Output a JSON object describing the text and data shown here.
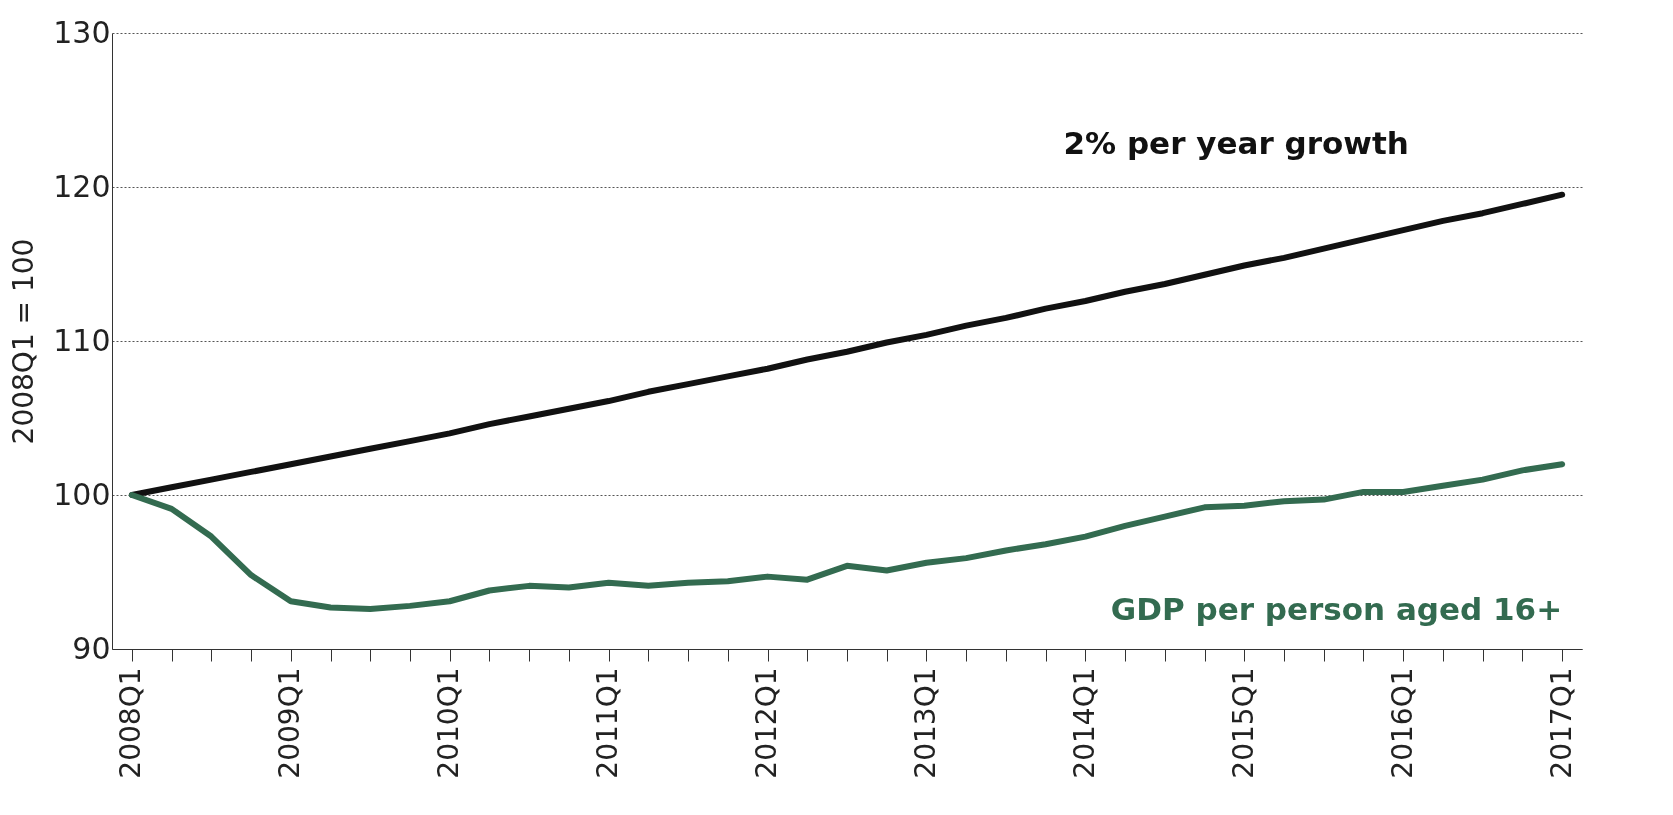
{
  "chart_data": {
    "type": "line",
    "ylabel": "2008Q1 = 100",
    "ylim": [
      90,
      130
    ],
    "yticks": [
      90,
      100,
      110,
      120,
      130
    ],
    "grid": "y",
    "line_style": "solid",
    "marker": "none",
    "categories": [
      "2008Q1",
      null,
      null,
      null,
      "2009Q1",
      null,
      null,
      null,
      "2010Q1",
      null,
      null,
      null,
      "2011Q1",
      null,
      null,
      null,
      "2012Q1",
      null,
      null,
      null,
      "2013Q1",
      null,
      null,
      null,
      "2014Q1",
      null,
      null,
      null,
      "2015Q1",
      null,
      null,
      null,
      "2016Q1",
      null,
      null,
      null,
      "2017Q1"
    ],
    "series": [
      {
        "name": "2% per year growth",
        "color": "#111111",
        "values": [
          100,
          100.5,
          101,
          101.5,
          102,
          102.5,
          103,
          103.5,
          104,
          104.6,
          105.1,
          105.6,
          106.1,
          106.7,
          107.2,
          107.7,
          108.2,
          108.8,
          109.3,
          109.9,
          110.4,
          111,
          111.5,
          112.1,
          112.6,
          113.2,
          113.7,
          114.3,
          114.9,
          115.4,
          116,
          116.6,
          117.2,
          117.8,
          118.3,
          118.9,
          119.5
        ]
      },
      {
        "name": "GDP per person aged 16+",
        "color": "#336b50",
        "values": [
          100,
          99.1,
          97.3,
          94.8,
          93.1,
          92.7,
          92.6,
          92.8,
          93.1,
          93.8,
          94.1,
          94,
          94.3,
          94.1,
          94.3,
          94.4,
          94.7,
          94.5,
          95.4,
          95.1,
          95.6,
          95.9,
          96.4,
          96.8,
          97.3,
          98,
          98.6,
          99.2,
          99.3,
          99.6,
          99.7,
          100.2,
          100.2,
          100.6,
          101,
          101.6,
          102
        ]
      }
    ]
  }
}
